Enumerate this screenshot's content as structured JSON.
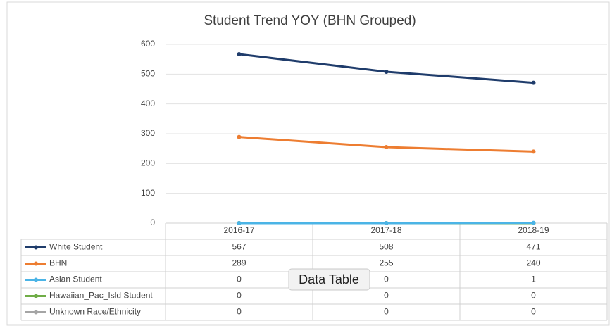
{
  "chart_data": {
    "type": "line",
    "title": "Student Trend YOY (BHN Grouped)",
    "categories": [
      "2016-17",
      "2017-18",
      "2018-19"
    ],
    "series": [
      {
        "name": "White Student",
        "color": "#1f3c6b",
        "values": [
          567,
          508,
          471
        ]
      },
      {
        "name": "BHN",
        "color": "#ed7d31",
        "values": [
          289,
          255,
          240
        ]
      },
      {
        "name": "Asian Student",
        "color": "#4bb4e6",
        "values": [
          0,
          0,
          1
        ]
      },
      {
        "name": "Hawaiian_Pac_Isld Student",
        "color": "#70ad47",
        "values": [
          0,
          0,
          0
        ]
      },
      {
        "name": "Unknown Race/Ethnicity",
        "color": "#a5a5a5",
        "values": [
          0,
          0,
          0
        ]
      }
    ],
    "ylim": [
      0,
      600
    ],
    "yticks": [
      0,
      100,
      200,
      300,
      400,
      500,
      600
    ],
    "grid": true,
    "tooltip": "Data Table"
  }
}
